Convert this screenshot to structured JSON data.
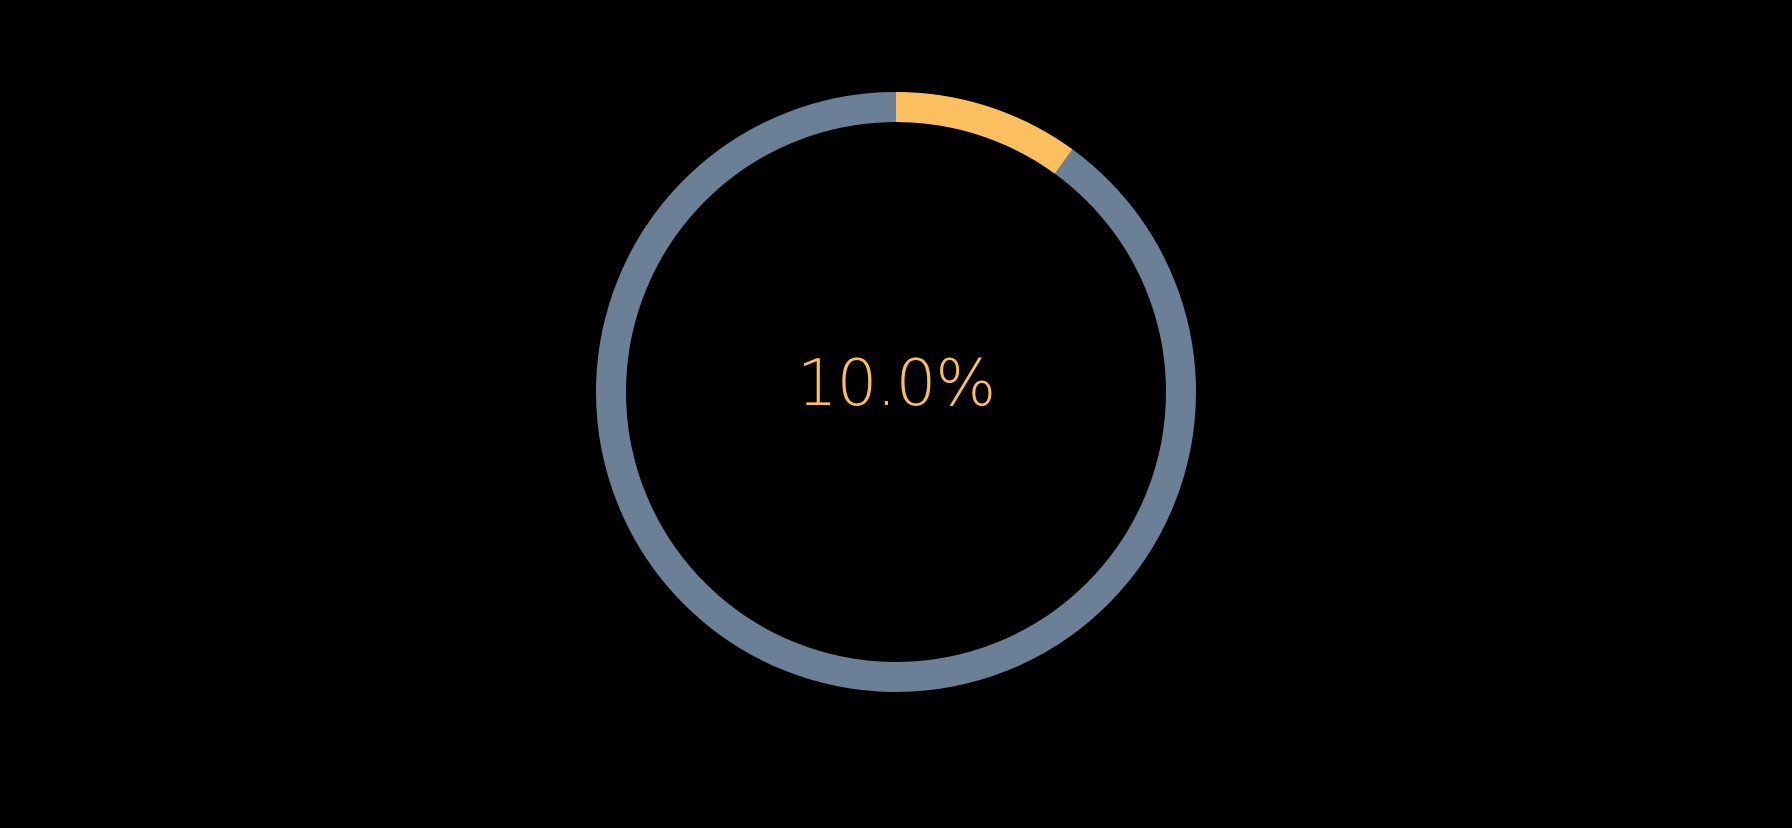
{
  "progress": {
    "value": 0.1,
    "label": "10.0%"
  },
  "colors": {
    "background": "#000000",
    "track": "#6B7F97",
    "progress": "#FBBF5F",
    "text": "#FBBF5F"
  }
}
